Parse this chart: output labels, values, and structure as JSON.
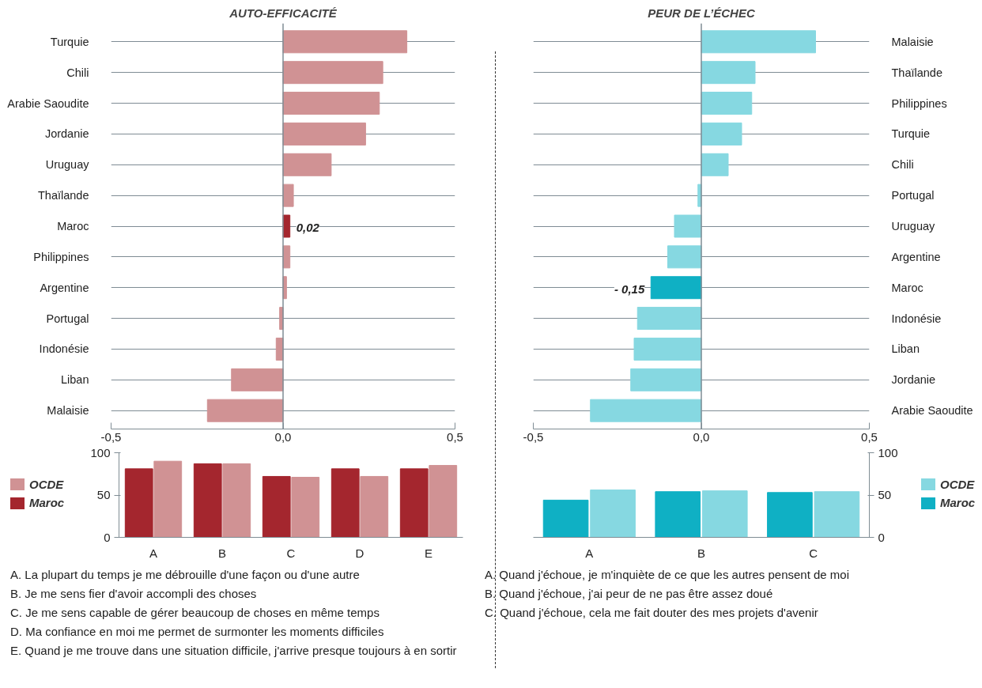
{
  "chart_data": [
    {
      "type": "bar",
      "orientation": "horizontal",
      "title": "AUTO-EFFICACITÉ",
      "categories": [
        "Turquie",
        "Chili",
        "Arabie Saoudite",
        "Jordanie",
        "Uruguay",
        "Thaïlande",
        "Maroc",
        "Philippines",
        "Argentine",
        "Portugal",
        "Indonésie",
        "Liban",
        "Malaisie"
      ],
      "values": [
        0.36,
        0.29,
        0.28,
        0.24,
        0.14,
        0.03,
        0.02,
        0.02,
        0.01,
        -0.01,
        -0.02,
        -0.15,
        -0.22
      ],
      "colors": [
        "#d09294",
        "#d09294",
        "#d09294",
        "#d09294",
        "#d09294",
        "#d09294",
        "#a4262e",
        "#d09294",
        "#d09294",
        "#d09294",
        "#d09294",
        "#d09294",
        "#d09294"
      ],
      "value_labels": [
        null,
        null,
        null,
        null,
        null,
        null,
        "0,02",
        null,
        null,
        null,
        null,
        null,
        null
      ],
      "xlim": [
        -0.5,
        0.5
      ],
      "xticks": [
        {
          "value": -0.5,
          "label": "-0,5"
        },
        {
          "value": 0,
          "label": "0,0"
        },
        {
          "value": 0.5,
          "label": "0,5"
        }
      ],
      "grid": "y"
    },
    {
      "type": "bar",
      "orientation": "horizontal",
      "title": "PEUR DE L’ÉCHEC",
      "categories": [
        "Malaisie",
        "Thaïlande",
        "Philippines",
        "Turquie",
        "Chili",
        "Portugal",
        "Uruguay",
        "Argentine",
        "Maroc",
        "Indonésie",
        "Liban",
        "Jordanie",
        "Arabie Saoudite"
      ],
      "values": [
        0.34,
        0.16,
        0.15,
        0.12,
        0.08,
        -0.01,
        -0.08,
        -0.1,
        -0.15,
        -0.19,
        -0.2,
        -0.21,
        -0.33
      ],
      "colors": [
        "#86d8e1",
        "#86d8e1",
        "#86d8e1",
        "#86d8e1",
        "#86d8e1",
        "#86d8e1",
        "#86d8e1",
        "#86d8e1",
        "#0fb0c4",
        "#86d8e1",
        "#86d8e1",
        "#86d8e1",
        "#86d8e1"
      ],
      "value_labels": [
        null,
        null,
        null,
        null,
        null,
        null,
        null,
        null,
        "- 0,15",
        null,
        null,
        null,
        null
      ],
      "xlim": [
        -0.5,
        0.5
      ],
      "xticks": [
        {
          "value": -0.5,
          "label": "-0,5"
        },
        {
          "value": 0,
          "label": "0,0"
        },
        {
          "value": 0.5,
          "label": "0,5"
        }
      ],
      "grid": "y"
    },
    {
      "type": "bar",
      "categories": [
        "A",
        "B",
        "C",
        "D",
        "E"
      ],
      "series": [
        {
          "name": "Maroc",
          "color": "#a4262e",
          "values": [
            81,
            87,
            72,
            81,
            81
          ]
        },
        {
          "name": "OCDE",
          "color": "#d09294",
          "values": [
            90,
            87,
            71,
            72,
            85
          ]
        }
      ],
      "ylim": [
        0,
        100
      ],
      "yticks": [
        0,
        50,
        100
      ],
      "legend": "left",
      "annotations": [
        "A. La plupart du temps je me débrouille d'une façon ou d'une autre",
        "B. Je me sens fier d'avoir accompli des choses",
        "C. Je me sens capable de gérer beaucoup de choses en même temps",
        "D. Ma confiance en moi me permet de surmonter les moments difficiles",
        "E. Quand je me trouve dans une situation difficile, j'arrive presque toujours à en sortir"
      ]
    },
    {
      "type": "bar",
      "categories": [
        "A",
        "B",
        "C"
      ],
      "series": [
        {
          "name": "Maroc",
          "color": "#0fb0c4",
          "values": [
            44,
            54,
            53
          ]
        },
        {
          "name": "OCDE",
          "color": "#86d8e1",
          "values": [
            56,
            55,
            54
          ]
        }
      ],
      "ylim": [
        0,
        100
      ],
      "yticks": [
        0,
        50,
        100
      ],
      "legend": "right",
      "annotations": [
        "A. Quand j'échoue, je m'inquiète de ce que les autres pensent de moi",
        "B. Quand j'échoue, j'ai peur de ne pas être assez doué",
        "C. Quand j'échoue, cela me fait douter des mes projets d'avenir"
      ]
    }
  ]
}
